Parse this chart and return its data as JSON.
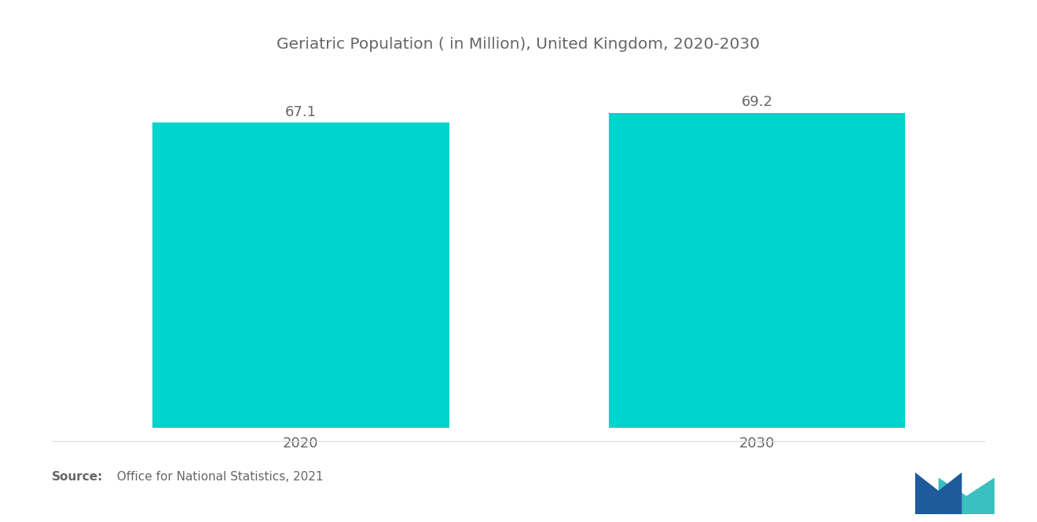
{
  "title": "Geriatric Population ( in Million), United Kingdom, 2020-2030",
  "categories": [
    "2020",
    "2030"
  ],
  "values": [
    67.1,
    69.2
  ],
  "bar_color": "#00D4CC",
  "background_color": "#FFFFFF",
  "text_color": "#666666",
  "title_fontsize": 14.5,
  "label_fontsize": 13,
  "value_fontsize": 13,
  "source_bold": "Source:",
  "source_rest": "  Office for National Statistics, 2021",
  "ylim": [
    0,
    78
  ],
  "x_positions": [
    1,
    3
  ],
  "bar_width": 1.3,
  "xlim": [
    0,
    4
  ],
  "logo_blue": "#1E5A9C",
  "logo_teal": "#3BBFBF"
}
